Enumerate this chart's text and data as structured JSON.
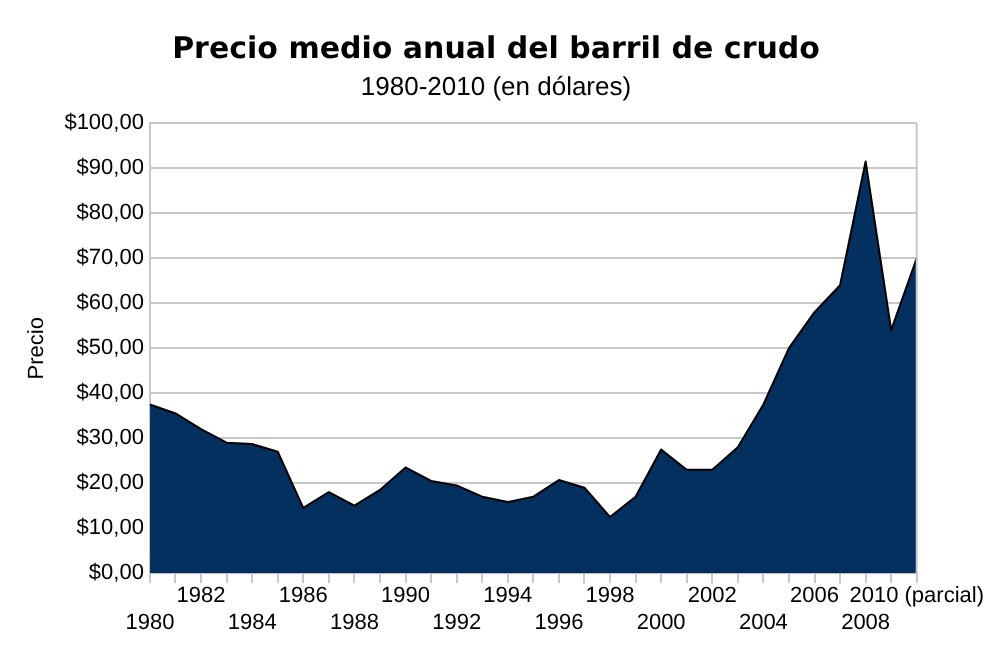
{
  "chart_data": {
    "type": "area",
    "title": "Precio medio anual del barril de crudo",
    "subtitle": "1980-2010 (en dólares)",
    "ylabel": "Precio",
    "categories": [
      "1980",
      null,
      "1982",
      null,
      "1984",
      null,
      "1986",
      null,
      "1988",
      null,
      "1990",
      null,
      "1992",
      null,
      "1994",
      null,
      "1996",
      null,
      "1998",
      null,
      "2000",
      null,
      "2002",
      null,
      "2004",
      null,
      "2006",
      null,
      "2008",
      null,
      "2010 (parcial)"
    ],
    "values": [
      37.5,
      35.5,
      32,
      29,
      28.7,
      27,
      14.5,
      18,
      15,
      18.5,
      23.5,
      20.5,
      19.5,
      17,
      15.8,
      17,
      20.7,
      19,
      12.5,
      17,
      27.5,
      23,
      23,
      28,
      37.5,
      50,
      58,
      64,
      91.5,
      54,
      70
    ],
    "color": "#043060",
    "ylim": [
      0,
      100
    ],
    "yticks": [
      {
        "value": 0,
        "label": "$0,00"
      },
      {
        "value": 10,
        "label": "$10,00"
      },
      {
        "value": 20,
        "label": "$20,00"
      },
      {
        "value": 30,
        "label": "$30,00"
      },
      {
        "value": 40,
        "label": "$40,00"
      },
      {
        "value": 50,
        "label": "$50,00"
      },
      {
        "value": 60,
        "label": "$60,00"
      },
      {
        "value": 70,
        "label": "$70,00"
      },
      {
        "value": 80,
        "label": "$80,00"
      },
      {
        "value": 90,
        "label": "$90,00"
      },
      {
        "value": 100,
        "label": "$100,00"
      }
    ],
    "grid": "y"
  }
}
